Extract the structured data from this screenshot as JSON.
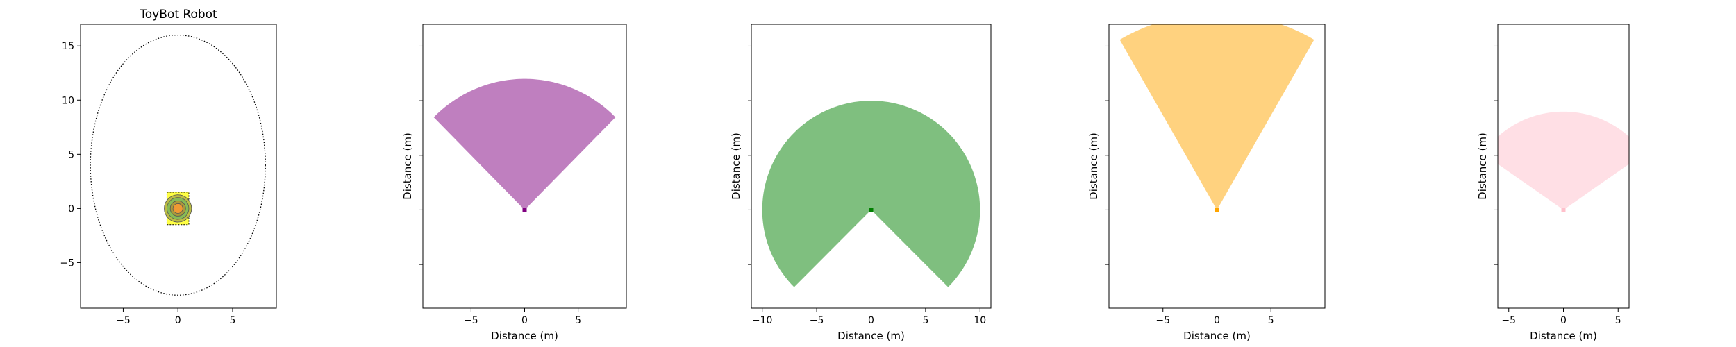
{
  "chart_data": [
    {
      "type": "robot-footprint",
      "title": "ToyBot Robot",
      "xlabel": "",
      "ylabel": "",
      "xlim": [
        -8.9,
        9.0
      ],
      "ylim": [
        -9.2,
        17.0
      ],
      "xticks": [
        -5,
        0,
        5
      ],
      "yticks": [
        -5,
        0,
        5,
        10,
        15
      ],
      "show_y_ticklabels": true,
      "ellipse": {
        "cx": 0,
        "cy": 4,
        "rx": 8,
        "ry": 12,
        "style": "dotted"
      },
      "body_box": {
        "x": [
          -1,
          1
        ],
        "y": [
          -1.5,
          1.5
        ],
        "color": "#ffff44"
      },
      "rings": [
        {
          "r": 1.25,
          "color": "#bcbc44"
        },
        {
          "r": 1.0,
          "color": "#88bb55"
        },
        {
          "r": 0.7,
          "color": "#aa9a3a"
        },
        {
          "r": 0.45,
          "color": "#ee9933"
        }
      ]
    },
    {
      "type": "sector",
      "title": "",
      "xlabel": "Distance (m)",
      "ylabel": "Distance (m)",
      "xlim": [
        -9.5,
        9.5
      ],
      "ylim": [
        -9.0,
        17.0
      ],
      "xticks": [
        -5,
        0,
        5
      ],
      "yticks": [
        -5,
        0,
        5,
        10,
        15
      ],
      "show_y_ticklabels": false,
      "sector": {
        "radius": 12,
        "heading_deg": 90,
        "fov_deg": 90
      },
      "color": "#800080",
      "alpha": 0.5
    },
    {
      "type": "sector",
      "title": "",
      "xlabel": "Distance (m)",
      "ylabel": "Distance (m)",
      "xlim": [
        -11,
        11
      ],
      "ylim": [
        -9.0,
        17.0
      ],
      "xticks": [
        -10,
        -5,
        0,
        5,
        10
      ],
      "yticks": [
        -5,
        0,
        5,
        10,
        15
      ],
      "show_y_ticklabels": false,
      "sector": {
        "radius": 10,
        "heading_deg": 90,
        "fov_deg": 270
      },
      "color": "#008000",
      "alpha": 0.5
    },
    {
      "type": "sector",
      "title": "",
      "xlabel": "Distance (m)",
      "ylabel": "Distance (m)",
      "xlim": [
        -10,
        10
      ],
      "ylim": [
        -9.0,
        17.0
      ],
      "xticks": [
        -5,
        0,
        5
      ],
      "yticks": [
        -5,
        0,
        5,
        10,
        15
      ],
      "show_y_ticklabels": false,
      "sector": {
        "radius": 18,
        "heading_deg": 90,
        "fov_deg": 60
      },
      "color": "#ffa500",
      "alpha": 0.5
    },
    {
      "type": "sector",
      "title": "",
      "xlabel": "Distance (m)",
      "ylabel": "Distance (m)",
      "xlim": [
        -6,
        6
      ],
      "ylim": [
        -9.0,
        17.0
      ],
      "xticks": [
        -5,
        0,
        5
      ],
      "yticks": [
        -5,
        0,
        5,
        10,
        15
      ],
      "show_y_ticklabels": false,
      "sector": {
        "radius": 9,
        "heading_deg": 90,
        "fov_deg": 110
      },
      "color": "#ffc0cb",
      "alpha": 0.5
    }
  ]
}
